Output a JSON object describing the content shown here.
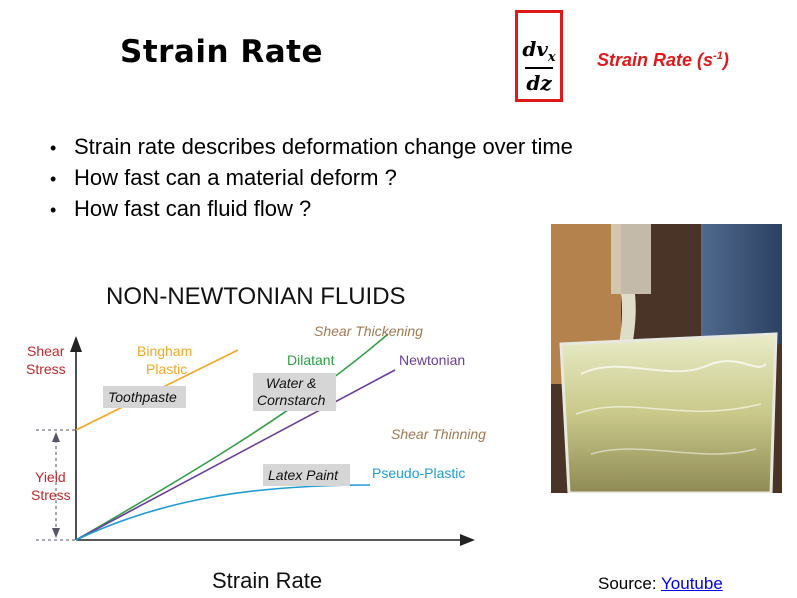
{
  "slide": {
    "title": "Strain Rate",
    "formula": {
      "numerator": "dv",
      "numerator_sub": "x",
      "denominator": "dz"
    },
    "units_label": "Strain Rate (s",
    "units_sup": "-1",
    "units_close": ")",
    "bullets": [
      "Strain rate describes deformation change over time",
      "How fast can a material deform ?",
      "How fast can fluid flow ?"
    ],
    "source_label": "Source: ",
    "source_link": "Youtube"
  },
  "figure": {
    "title": "NON-NEWTONIAN FLUIDS",
    "x_axis_label": "Strain Rate",
    "y_axis_label_line1": "Shear",
    "y_axis_label_line2": "Stress",
    "yield_label_line1": "Yield",
    "yield_label_line2": "Stress",
    "curve_labels": {
      "bingham_line1": "Bingham",
      "bingham_line2": "Plastic",
      "shear_thickening": "Shear Thickening",
      "dilatant": "Dilatant",
      "newtonian": "Newtonian",
      "shear_thinning": "Shear Thinning",
      "pseudo_plastic": "Pseudo-Plastic"
    },
    "example_labels": {
      "toothpaste": "Toothpaste",
      "water_cornstarch_line1": "Water &",
      "water_cornstarch_line2": "Cornstarch",
      "latex_paint": "Latex Paint"
    },
    "colors": {
      "bingham": "#f5a623",
      "dilatant": "#2e9e44",
      "newtonian": "#6a3d9a",
      "pseudo_plastic": "#1f9bd7",
      "axis_label_red": "#c0282f",
      "shear_label_brown": "#a07a52"
    }
  }
}
